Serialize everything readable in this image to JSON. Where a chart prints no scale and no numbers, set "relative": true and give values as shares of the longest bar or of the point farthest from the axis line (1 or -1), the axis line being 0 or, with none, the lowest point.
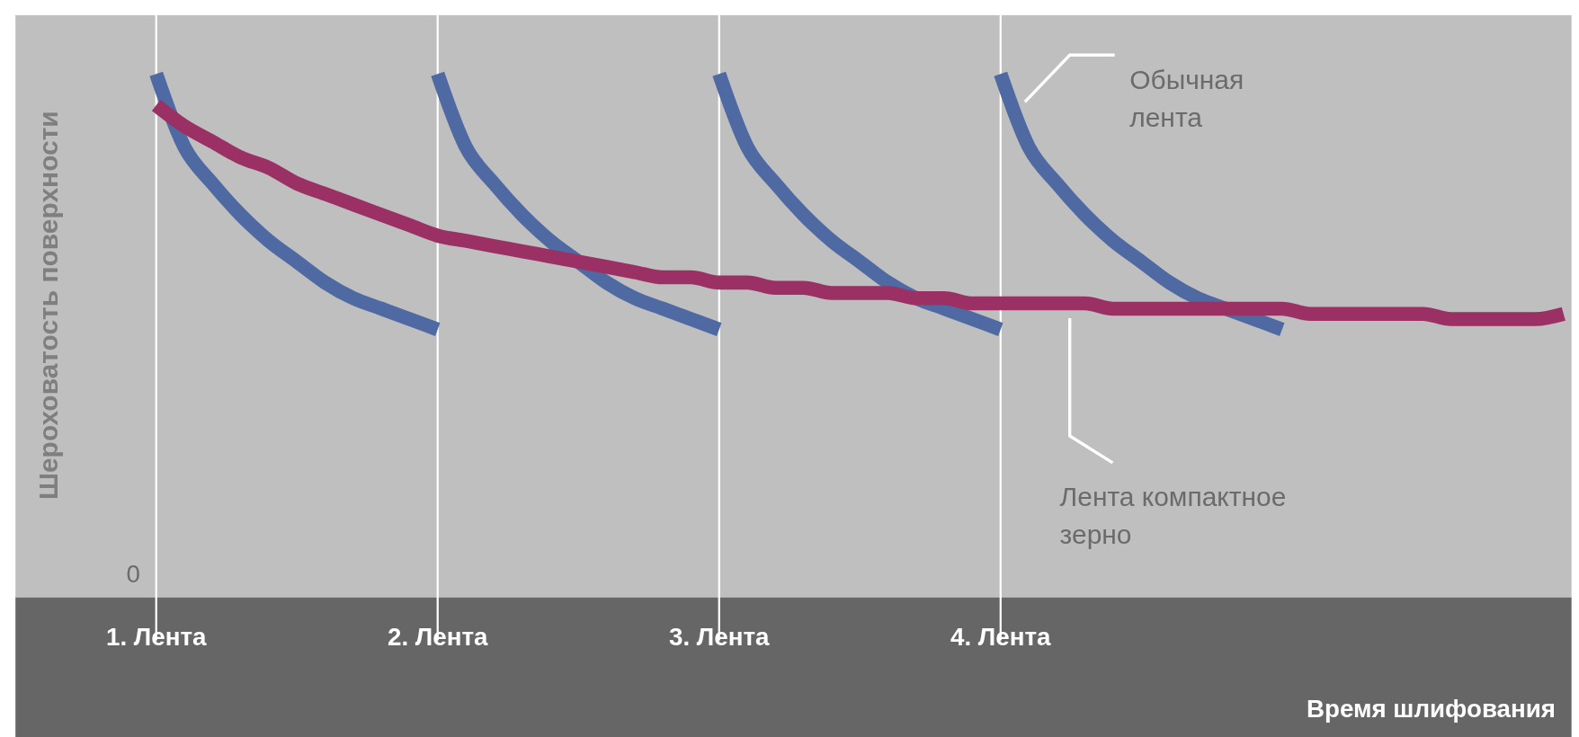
{
  "chart_data": {
    "type": "line",
    "relative": true,
    "xlabel": "Время шлифования",
    "ylabel": "Шероховатость поверхности",
    "tick_labels": "x",
    "grid": "x",
    "line_style": "solid",
    "marker": "none",
    "categories": [
      null,
      null,
      null,
      null,
      null,
      "1. Лента",
      null,
      null,
      null,
      null,
      null,
      null,
      null,
      null,
      null,
      "2. Лента",
      null,
      null,
      null,
      null,
      null,
      null,
      null,
      null,
      null,
      "3. Лента",
      null,
      null,
      null,
      null,
      null,
      null,
      null,
      null,
      null,
      "4. Лента",
      null,
      null,
      null,
      null,
      null,
      null,
      null,
      null,
      null,
      null,
      null,
      null,
      null,
      null,
      null,
      null,
      null,
      null,
      null,
      null
    ],
    "annotations": [
      "0",
      "Обычная лента",
      "Лента компактное зерно"
    ],
    "series": [
      {
        "color": "#4f6aa3",
        "values": [
          null,
          null,
          null,
          null,
          null,
          1.0,
          0.86,
          0.79,
          0.73,
          0.68,
          0.64,
          0.6,
          0.57,
          0.55,
          0.53,
          0.51,
          null,
          null,
          null,
          null,
          null,
          null,
          null,
          null,
          null,
          null,
          null,
          null,
          null,
          null,
          null,
          null,
          null,
          null,
          null,
          null,
          null,
          null,
          null,
          null,
          null,
          null,
          null,
          null,
          null,
          null,
          null,
          null,
          null,
          null,
          null,
          null,
          null,
          null,
          null,
          null
        ]
      },
      {
        "color": "#4f6aa3",
        "values": [
          null,
          null,
          null,
          null,
          null,
          null,
          null,
          null,
          null,
          null,
          null,
          null,
          null,
          null,
          null,
          1.0,
          0.86,
          0.79,
          0.73,
          0.68,
          0.64,
          0.6,
          0.57,
          0.55,
          0.53,
          0.51,
          null,
          null,
          null,
          null,
          null,
          null,
          null,
          null,
          null,
          null,
          null,
          null,
          null,
          null,
          null,
          null,
          null,
          null,
          null,
          null,
          null,
          null,
          null,
          null,
          null,
          null,
          null,
          null,
          null,
          null
        ]
      },
      {
        "color": "#4f6aa3",
        "values": [
          null,
          null,
          null,
          null,
          null,
          null,
          null,
          null,
          null,
          null,
          null,
          null,
          null,
          null,
          null,
          null,
          null,
          null,
          null,
          null,
          null,
          null,
          null,
          null,
          null,
          1.0,
          0.86,
          0.79,
          0.73,
          0.68,
          0.64,
          0.6,
          0.57,
          0.55,
          0.53,
          0.51,
          null,
          null,
          null,
          null,
          null,
          null,
          null,
          null,
          null,
          null,
          null,
          null,
          null,
          null,
          null,
          null,
          null,
          null,
          null,
          null
        ]
      },
      {
        "color": "#4f6aa3",
        "values": [
          null,
          null,
          null,
          null,
          null,
          null,
          null,
          null,
          null,
          null,
          null,
          null,
          null,
          null,
          null,
          null,
          null,
          null,
          null,
          null,
          null,
          null,
          null,
          null,
          null,
          null,
          null,
          null,
          null,
          null,
          null,
          null,
          null,
          null,
          null,
          1.0,
          0.86,
          0.79,
          0.73,
          0.68,
          0.64,
          0.6,
          0.57,
          0.55,
          0.53,
          0.51,
          null,
          null,
          null,
          null,
          null,
          null,
          null,
          null,
          null,
          null
        ]
      },
      {
        "color": "#9b3064",
        "values": [
          null,
          null,
          null,
          null,
          null,
          0.94,
          0.9,
          0.87,
          0.84,
          0.82,
          0.79,
          0.77,
          0.75,
          0.73,
          0.71,
          0.69,
          0.68,
          0.67,
          0.66,
          0.65,
          0.64,
          0.63,
          0.62,
          0.61,
          0.61,
          0.6,
          0.6,
          0.59,
          0.59,
          0.58,
          0.58,
          0.58,
          0.57,
          0.57,
          0.56,
          0.56,
          0.56,
          0.56,
          0.56,
          0.55,
          0.55,
          0.55,
          0.55,
          0.55,
          0.55,
          0.55,
          0.54,
          0.54,
          0.54,
          0.54,
          0.54,
          0.53,
          0.53,
          0.53,
          0.53,
          0.54
        ]
      }
    ]
  }
}
